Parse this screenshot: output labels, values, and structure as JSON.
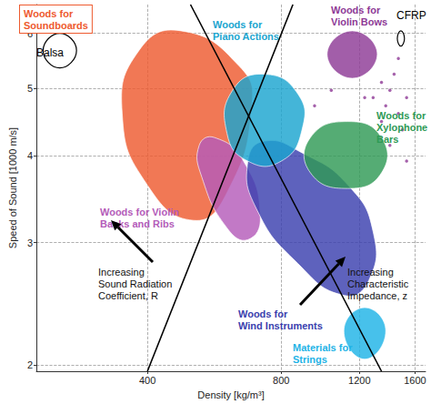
{
  "chart_data": {
    "type": "region",
    "xlabel": "Density [kg/m³]",
    "ylabel": "Speed of Sound [1000 m/s]",
    "log": true,
    "grid": true,
    "xlim": [
      225,
      1690
    ],
    "xticks": [
      400,
      800,
      1200,
      1600
    ],
    "ylim": [
      1.96,
      6.6
    ],
    "yticks": [
      2,
      3,
      4,
      5,
      6
    ],
    "series": [
      {
        "name": "Woods for\nSoundboards",
        "type": "area",
        "color": "#ee5a2f",
        "x": [
          476,
          644,
          687,
          604,
          508,
          400,
          351,
          383
        ],
        "y": [
          6.05,
          5.38,
          4.72,
          3.54,
          3.23,
          3.63,
          4.6,
          5.67
        ]
      },
      {
        "name": "Woods for Violin\nBacks and Ribs",
        "type": "area",
        "color": "#b45cb9",
        "x": [
          566,
          658,
          718,
          673,
          604,
          530,
          523
        ],
        "y": [
          4.25,
          3.93,
          3.27,
          3.03,
          3.15,
          3.73,
          4.14
        ]
      },
      {
        "name": "Woods for\nWind Instruments",
        "type": "area",
        "color": "#3b3fae",
        "x": [
          734,
          891,
          1131,
          1288,
          1260,
          1107,
          872,
          703,
          673
        ],
        "y": [
          4.2,
          4.04,
          3.63,
          3.11,
          2.65,
          2.52,
          2.8,
          3.36,
          3.93
        ]
      },
      {
        "name": "Woods for\nPiano Actions",
        "type": "area",
        "color": "#1ba5cf",
        "x": [
          734,
          872,
          891,
          800,
          673,
          604,
          622
        ],
        "y": [
          5.24,
          4.91,
          4.36,
          3.93,
          3.93,
          4.31,
          4.97
        ]
      },
      {
        "name": "Woods for\nXylophone\nBars",
        "type": "area",
        "color": "#2f9a56",
        "x": [
          1131,
          1345,
          1345,
          1131,
          931,
          931
        ],
        "y": [
          4.48,
          4.25,
          3.78,
          3.59,
          3.78,
          4.25
        ]
      },
      {
        "name": "Woods for\nViolin Bows",
        "type": "area",
        "color": "#8e3a96",
        "x": [
          1156,
          1316,
          1156,
          1015
        ],
        "y": [
          6.05,
          5.6,
          5.17,
          5.6
        ]
      },
      {
        "name": "Materials for\nStrings",
        "type": "area",
        "color": "#1fb3e6",
        "x": [
          1233,
          1375,
          1233,
          1107
        ],
        "y": [
          2.42,
          2.24,
          2.04,
          2.24
        ]
      },
      {
        "name": "Balsa",
        "type": "outline",
        "color": "#000000",
        "x": [
          254,
          277,
          254,
          233
        ],
        "y": [
          6.0,
          5.67,
          5.35,
          5.67
        ]
      },
      {
        "name": "CFRP",
        "type": "outline",
        "color": "#000000",
        "x": [
          1487,
          1515,
          1487,
          1460
        ],
        "y": [
          6.05,
          5.9,
          5.75,
          5.9
        ]
      },
      {
        "type": "scatter",
        "color": "#8e3a96",
        "x": [
          1345,
          1405,
          1436,
          1288,
          1375,
          1468,
          1233,
          1499,
          1405,
          1532,
          1037,
          951,
          1532,
          1345,
          1468
        ],
        "y": [
          5.1,
          4.97,
          5.24,
          4.85,
          4.72,
          4.6,
          4.85,
          4.36,
          4.14,
          3.93,
          4.97,
          4.72,
          4.85,
          4.48,
          5.52
        ]
      },
      {
        "type": "line",
        "color": "#000000",
        "x": [
          400,
          850
        ],
        "y": [
          1.96,
          6.6
        ]
      },
      {
        "type": "line",
        "color": "#000000",
        "x": [
          500,
          1345
        ],
        "y": [
          6.6,
          1.96
        ]
      }
    ],
    "annotations": [
      "Increasing\nSound Radiation\nCoefficient, R",
      "Increasing\nCharacteristic\nImpedance, z"
    ]
  }
}
